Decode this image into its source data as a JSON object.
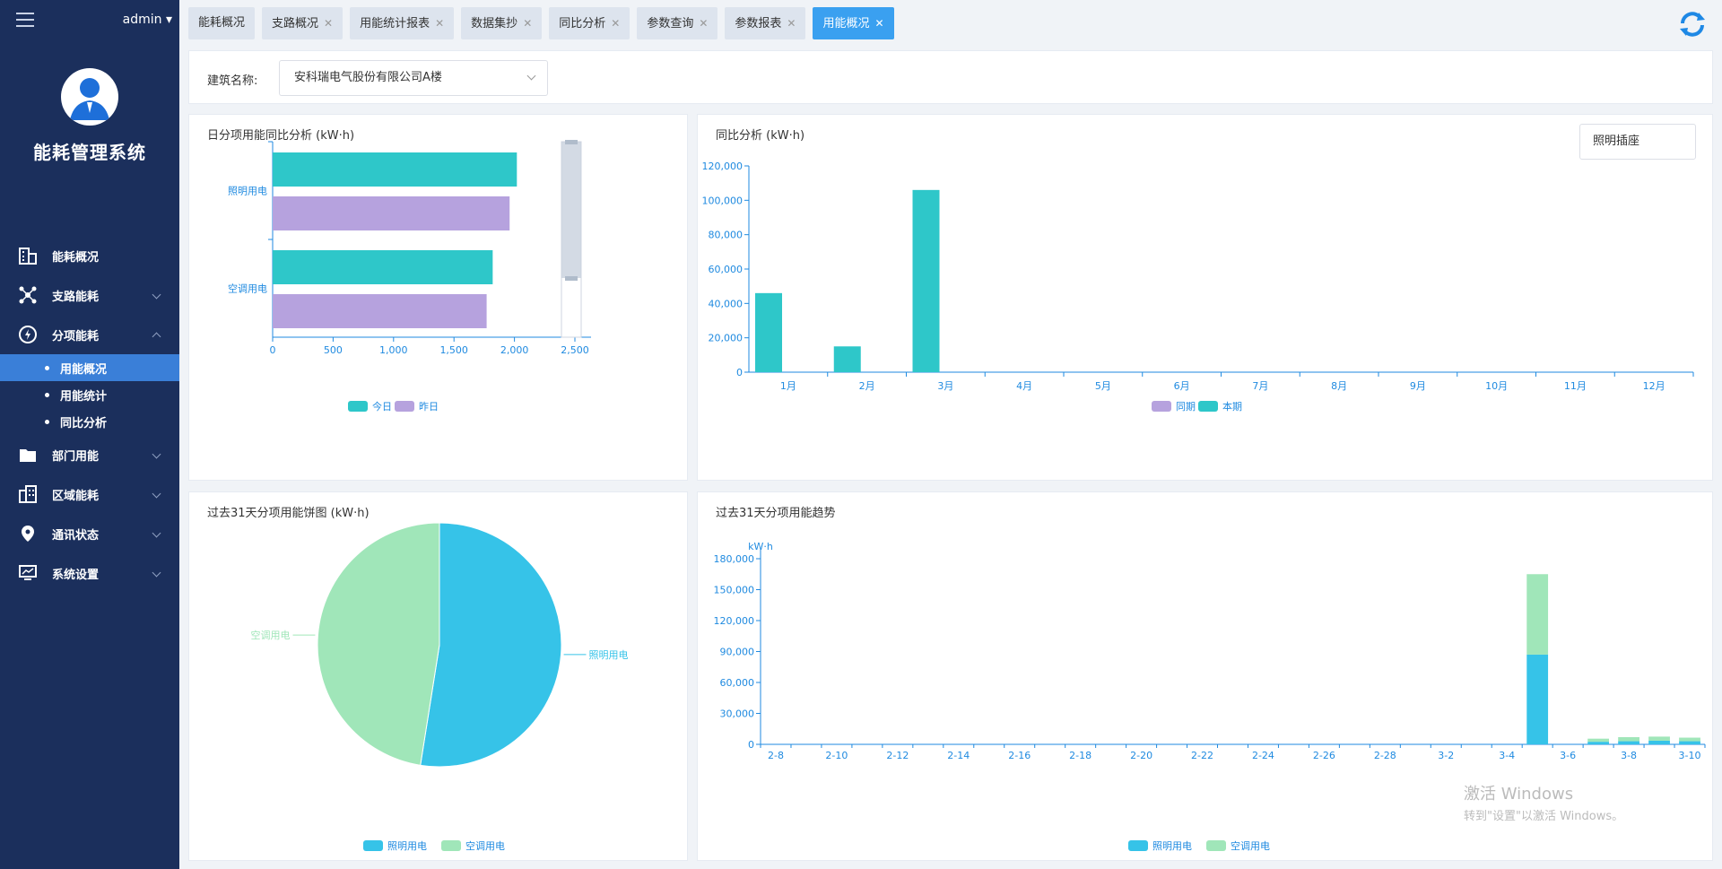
{
  "sidebar": {
    "user": "admin",
    "title": "能耗管理系统",
    "menu": [
      {
        "label": "能耗概况",
        "icon": "building-icon"
      },
      {
        "label": "支路能耗",
        "icon": "network-icon"
      },
      {
        "label": "分项能耗",
        "icon": "gauge-icon"
      }
    ],
    "submenu": [
      "用能概况",
      "用能统计",
      "同比分析"
    ],
    "menu2": [
      {
        "label": "部门用能",
        "icon": "folder-icon"
      },
      {
        "label": "区域能耗",
        "icon": "city-icon"
      },
      {
        "label": "通讯状态",
        "icon": "location-icon"
      },
      {
        "label": "系统设置",
        "icon": "monitor-icon"
      }
    ]
  },
  "tabs": [
    {
      "label": "能耗概况",
      "close": false
    },
    {
      "label": "支路概况",
      "close": true
    },
    {
      "label": "用能统计报表",
      "close": true
    },
    {
      "label": "数据集抄",
      "close": true
    },
    {
      "label": "同比分析",
      "close": true
    },
    {
      "label": "参数查询",
      "close": true
    },
    {
      "label": "参数报表",
      "close": true
    },
    {
      "label": "用能概况",
      "close": true,
      "active": true
    }
  ],
  "filter": {
    "label": "建筑名称:",
    "value": "安科瑞电气股份有限公司A楼"
  },
  "colors": {
    "teal": "#2ec7c9",
    "purple": "#b6a2de",
    "blue": "#36c3e8",
    "green": "#a0e6b9",
    "axis": "#1f8ae0"
  },
  "watermark": {
    "line1": "激活 Windows",
    "line2": "转到\"设置\"以激活 Windows。"
  },
  "chart_data": [
    {
      "id": "daily",
      "type": "bar",
      "orientation": "horizontal",
      "title": "日分项用能同比分析 (kW·h)",
      "categories": [
        "照明用电",
        "空调用电"
      ],
      "series": [
        {
          "name": "今日",
          "values": [
            2020,
            1820
          ]
        },
        {
          "name": "昨日",
          "values": [
            1960,
            1770
          ]
        }
      ],
      "xlim": [
        0,
        2500
      ],
      "xticks": [
        "0",
        "500",
        "1,000",
        "1,500",
        "2,000",
        "2,500"
      ]
    },
    {
      "id": "yoy",
      "type": "bar",
      "title": "同比分析 (kW·h)",
      "selector": "照明插座",
      "categories": [
        "1月",
        "2月",
        "3月",
        "4月",
        "5月",
        "6月",
        "7月",
        "8月",
        "9月",
        "10月",
        "11月",
        "12月"
      ],
      "series": [
        {
          "name": "同期",
          "values": [
            0,
            0,
            0,
            0,
            0,
            0,
            0,
            0,
            0,
            0,
            0,
            0
          ]
        },
        {
          "name": "本期",
          "values": [
            46000,
            15000,
            106000,
            0,
            0,
            0,
            0,
            0,
            0,
            0,
            0,
            0
          ]
        }
      ],
      "ylim": [
        0,
        120000
      ],
      "yticks": [
        "0",
        "20,000",
        "40,000",
        "60,000",
        "80,000",
        "100,000",
        "120,000"
      ]
    },
    {
      "id": "pie",
      "type": "pie",
      "title": "过去31天分项用能饼图 (kW·h)",
      "slices": [
        {
          "name": "照明用电",
          "value": 52.5
        },
        {
          "name": "空调用电",
          "value": 47.5
        }
      ]
    },
    {
      "id": "trend",
      "type": "bar",
      "stacked": true,
      "title": "过去31天分项用能趋势",
      "ylabel": "kW·h",
      "xticks": [
        "2-8",
        "2-10",
        "2-12",
        "2-14",
        "2-16",
        "2-18",
        "2-20",
        "2-22",
        "2-24",
        "2-26",
        "2-28",
        "3-2",
        "3-4",
        "3-6",
        "3-8",
        "3-10"
      ],
      "ylim": [
        0,
        180000
      ],
      "yticks": [
        "0",
        "30,000",
        "60,000",
        "90,000",
        "120,000",
        "150,000",
        "180,000"
      ],
      "bars": [
        {
          "date": "3-5",
          "照明用电": 87000,
          "空调用电": 78000
        },
        {
          "date": "3-7",
          "照明用电": 2500,
          "空调用电": 3000
        },
        {
          "date": "3-8",
          "照明用电": 3000,
          "空调用电": 4000
        },
        {
          "date": "3-9",
          "照明用电": 3500,
          "空调用电": 4000
        },
        {
          "date": "3-10",
          "照明用电": 3000,
          "空调用电": 3500
        }
      ],
      "legend": [
        "照明用电",
        "空调用电"
      ]
    }
  ]
}
